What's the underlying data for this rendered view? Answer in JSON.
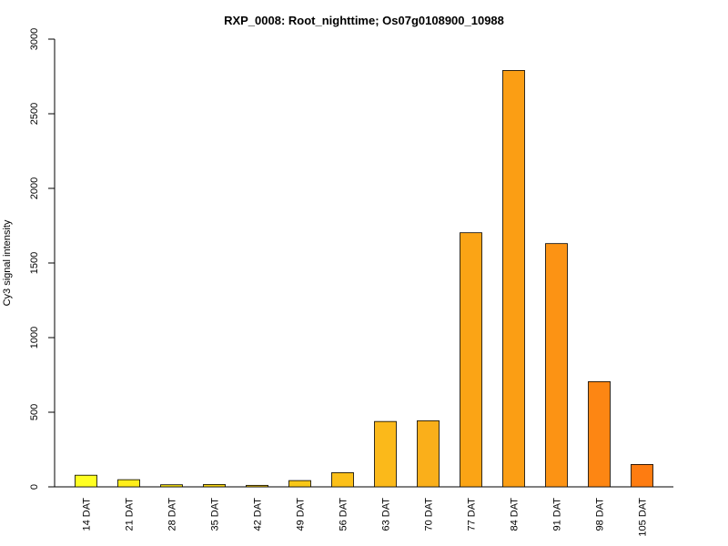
{
  "chart_data": {
    "type": "bar",
    "title": "RXP_0008: Root_nighttime; Os07g0108900_10988",
    "xlabel": "",
    "ylabel": "Cy3 signal intensity",
    "ylim": [
      0,
      3000
    ],
    "yticks": [
      0,
      500,
      1000,
      1500,
      2000,
      2500,
      3000
    ],
    "grid": false,
    "legend": "none",
    "categories": [
      "14 DAT",
      "21 DAT",
      "28 DAT",
      "35 DAT",
      "42 DAT",
      "49 DAT",
      "56 DAT",
      "63 DAT",
      "70 DAT",
      "77 DAT",
      "84 DAT",
      "91 DAT",
      "98 DAT",
      "105 DAT"
    ],
    "values": [
      78,
      48,
      14,
      16,
      10,
      42,
      95,
      438,
      443,
      1703,
      2790,
      1630,
      705,
      150
    ],
    "colors": [
      "#ffff22",
      "#ffee1a",
      "#f5e012",
      "#f7d414",
      "#f8cb15",
      "#f9c818",
      "#fcc019",
      "#fbb91a",
      "#faaf1a",
      "#fba415",
      "#fb9e14",
      "#fc9314",
      "#fd8613",
      "#fe7c11"
    ]
  }
}
